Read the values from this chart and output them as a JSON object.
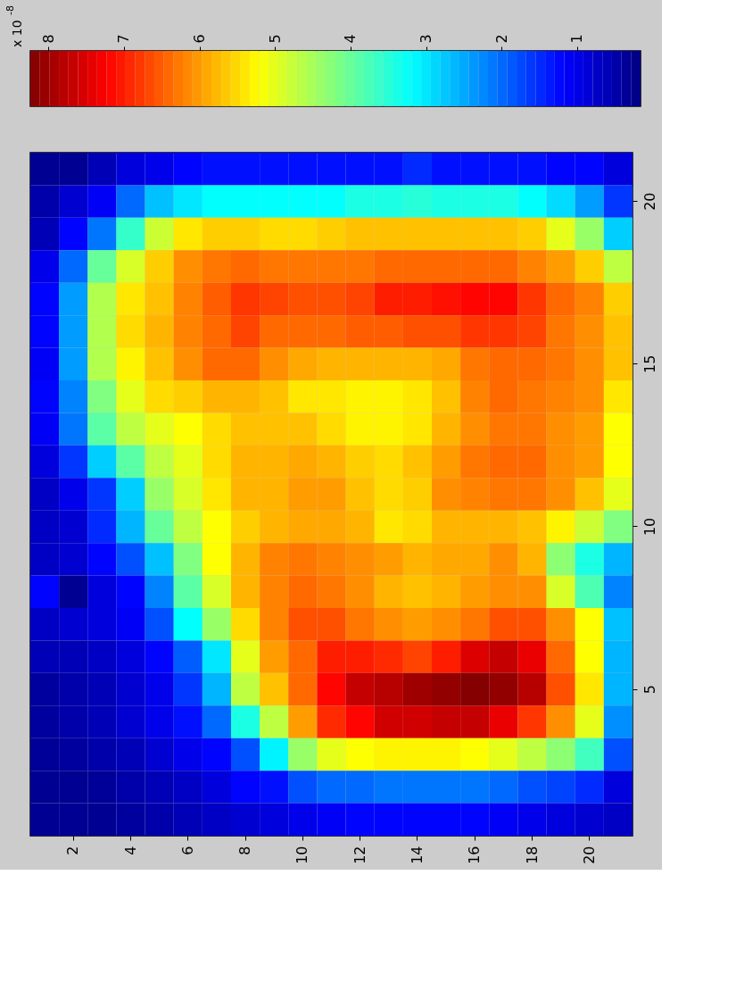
{
  "chart_data": {
    "type": "heatmap",
    "clabel": "x 10$^{-8}$",
    "categories": [
      null,
      "2",
      null,
      "4",
      null,
      "6",
      null,
      "8",
      null,
      "10",
      null,
      "12",
      null,
      "14",
      null,
      "16",
      null,
      "18",
      null,
      "20",
      null
    ],
    "y_categories": [
      null,
      "20",
      null,
      null,
      null,
      null,
      "15",
      null,
      null,
      null,
      null,
      "10",
      null,
      null,
      null,
      null,
      "5",
      null,
      null,
      null,
      null
    ],
    "clim": [
      8.24,
      0.16
    ],
    "cticks": [
      8,
      7,
      6,
      5,
      4,
      3,
      2,
      1
    ],
    "colors": [
      "#800000",
      "#ff0000",
      "#ff8000",
      "#ffff00",
      "#80ff80",
      "#00ffff",
      "#0080ff",
      "#0000ff",
      "#000080"
    ],
    "cells": [
      [
        0.3,
        0.3,
        0.6,
        0.9,
        1.0,
        1.2,
        1.3,
        1.3,
        1.3,
        1.3,
        1.3,
        1.3,
        1.3,
        1.5,
        1.3,
        1.3,
        1.3,
        1.3,
        1.2,
        1.2,
        0.9
      ],
      [
        0.5,
        0.8,
        1.1,
        2.0,
        2.7,
        3.0,
        3.2,
        3.2,
        3.2,
        3.2,
        3.2,
        3.4,
        3.4,
        3.5,
        3.4,
        3.4,
        3.4,
        3.2,
        2.9,
        2.4,
        1.6
      ],
      [
        0.6,
        1.2,
        2.1,
        3.6,
        4.8,
        5.4,
        5.6,
        5.6,
        5.5,
        5.5,
        5.6,
        5.7,
        5.7,
        5.7,
        5.7,
        5.7,
        5.7,
        5.6,
        5.0,
        4.4,
        2.8
      ],
      [
        1.0,
        2.0,
        4.0,
        4.9,
        5.6,
        6.1,
        6.3,
        6.4,
        6.3,
        6.3,
        6.3,
        6.3,
        6.4,
        6.4,
        6.4,
        6.4,
        6.4,
        6.2,
        6.0,
        5.6,
        4.7
      ],
      [
        1.2,
        2.4,
        4.6,
        5.4,
        5.7,
        6.2,
        6.5,
        6.8,
        6.7,
        6.6,
        6.6,
        6.7,
        7.0,
        7.0,
        7.1,
        7.2,
        7.2,
        6.8,
        6.4,
        6.2,
        5.6
      ],
      [
        1.2,
        2.4,
        4.6,
        5.5,
        5.8,
        6.2,
        6.4,
        6.7,
        6.4,
        6.4,
        6.4,
        6.5,
        6.5,
        6.6,
        6.6,
        6.8,
        6.8,
        6.7,
        6.3,
        6.1,
        5.7
      ],
      [
        1.1,
        2.4,
        4.6,
        5.3,
        5.7,
        6.1,
        6.4,
        6.4,
        6.1,
        5.9,
        5.8,
        5.8,
        5.8,
        5.8,
        5.9,
        6.3,
        6.4,
        6.4,
        6.3,
        6.1,
        5.7
      ],
      [
        1.2,
        2.2,
        4.2,
        5.0,
        5.5,
        5.6,
        5.8,
        5.8,
        5.7,
        5.4,
        5.4,
        5.3,
        5.3,
        5.4,
        5.7,
        6.2,
        6.4,
        6.3,
        6.2,
        6.1,
        5.4
      ],
      [
        1.1,
        2.1,
        3.9,
        4.7,
        5.0,
        5.2,
        5.5,
        5.7,
        5.7,
        5.7,
        5.5,
        5.3,
        5.3,
        5.4,
        5.8,
        6.1,
        6.3,
        6.3,
        6.1,
        6.0,
        5.2
      ],
      [
        0.9,
        1.6,
        2.8,
        3.9,
        4.7,
        5.0,
        5.5,
        5.8,
        5.8,
        5.9,
        5.8,
        5.6,
        5.5,
        5.7,
        6.0,
        6.3,
        6.4,
        6.4,
        6.1,
        6.0,
        5.2
      ],
      [
        0.7,
        1.0,
        1.6,
        2.8,
        4.4,
        4.9,
        5.4,
        5.8,
        5.8,
        6.0,
        6.0,
        5.7,
        5.5,
        5.6,
        6.1,
        6.2,
        6.3,
        6.3,
        6.1,
        5.7,
        5.0
      ],
      [
        0.7,
        0.8,
        1.5,
        2.6,
        4.0,
        4.7,
        5.2,
        5.6,
        5.8,
        5.9,
        5.9,
        5.8,
        5.4,
        5.5,
        5.8,
        5.8,
        5.8,
        5.7,
        5.3,
        4.8,
        4.2
      ],
      [
        0.7,
        0.8,
        1.2,
        1.8,
        2.7,
        4.2,
        5.2,
        5.8,
        6.2,
        6.3,
        6.2,
        6.1,
        6.0,
        5.8,
        5.9,
        5.9,
        6.1,
        5.8,
        4.3,
        3.4,
        2.6
      ],
      [
        1.2,
        0.3,
        0.9,
        1.2,
        2.2,
        3.9,
        4.9,
        5.8,
        6.2,
        6.4,
        6.3,
        6.1,
        5.8,
        5.7,
        5.8,
        6.0,
        6.1,
        6.1,
        4.9,
        3.8,
        2.2
      ],
      [
        0.7,
        0.8,
        0.9,
        1.1,
        1.8,
        3.2,
        4.4,
        5.5,
        6.2,
        6.6,
        6.6,
        6.3,
        6.1,
        6.0,
        6.1,
        6.3,
        6.6,
        6.6,
        6.1,
        5.2,
        2.7
      ],
      [
        0.6,
        0.6,
        0.7,
        0.9,
        1.2,
        1.9,
        3.0,
        5.0,
        6.0,
        6.4,
        7.0,
        7.0,
        6.9,
        6.7,
        7.0,
        7.5,
        7.7,
        7.4,
        6.4,
        5.2,
        2.6
      ],
      [
        0.4,
        0.5,
        0.6,
        0.8,
        1.0,
        1.6,
        2.6,
        4.7,
        5.7,
        6.4,
        7.2,
        7.7,
        7.8,
        8.0,
        8.1,
        8.2,
        8.1,
        7.8,
        6.6,
        5.4,
        2.6
      ],
      [
        0.4,
        0.5,
        0.6,
        0.8,
        1.0,
        1.3,
        2.0,
        3.4,
        4.7,
        6.0,
        6.9,
        7.2,
        7.6,
        7.6,
        7.7,
        7.7,
        7.4,
        6.8,
        6.1,
        5.0,
        2.3
      ],
      [
        0.35,
        0.4,
        0.5,
        0.6,
        0.8,
        1.0,
        1.2,
        1.8,
        3.1,
        4.4,
        5.0,
        5.2,
        5.3,
        5.3,
        5.3,
        5.2,
        5.0,
        4.7,
        4.3,
        3.7,
        1.8
      ],
      [
        0.3,
        0.3,
        0.35,
        0.5,
        0.6,
        0.7,
        0.9,
        1.2,
        1.3,
        1.8,
        2.0,
        2.0,
        2.1,
        2.1,
        2.1,
        2.1,
        2.0,
        1.8,
        1.7,
        1.5,
        0.9
      ],
      [
        0.3,
        0.3,
        0.3,
        0.4,
        0.5,
        0.6,
        0.7,
        0.8,
        0.9,
        1.0,
        1.1,
        1.2,
        1.2,
        1.2,
        1.2,
        1.2,
        1.1,
        1.0,
        0.9,
        0.8,
        0.7
      ]
    ]
  }
}
